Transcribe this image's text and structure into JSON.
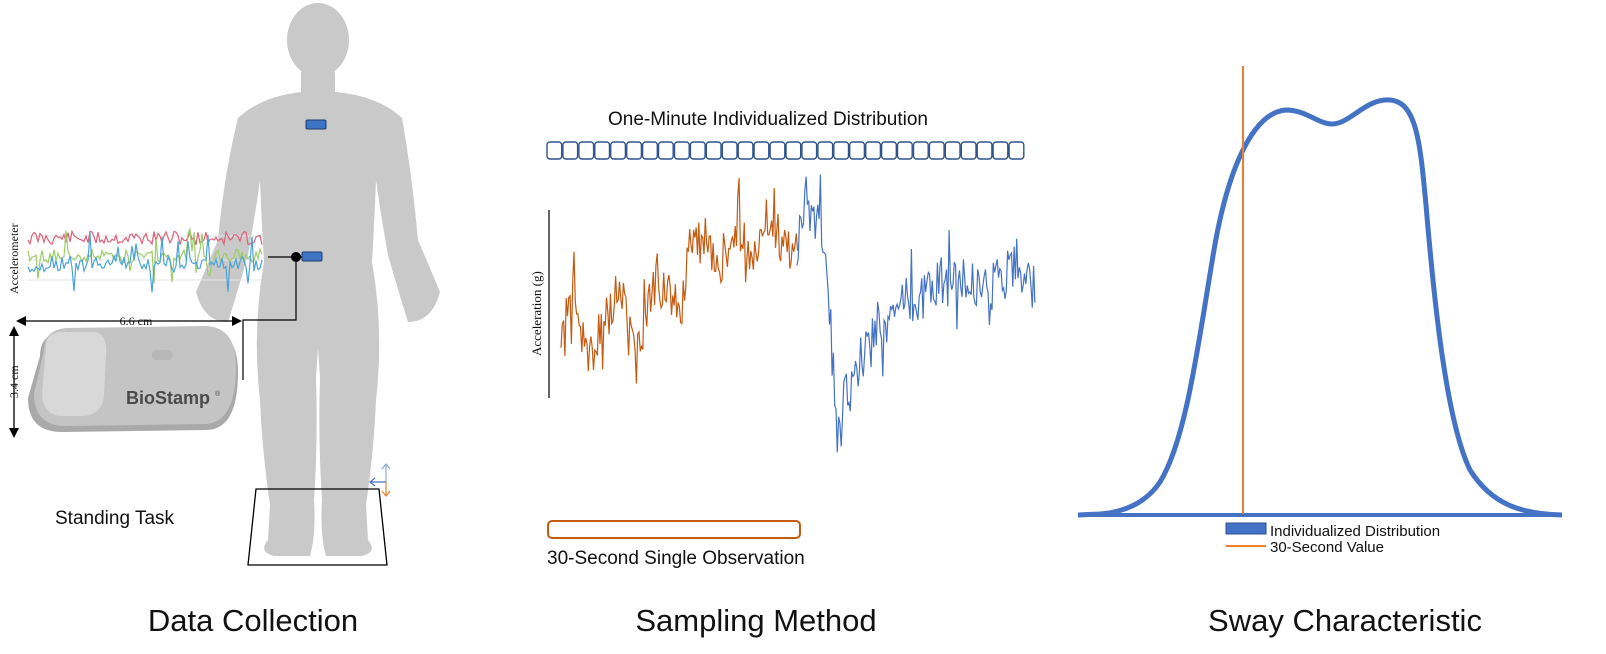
{
  "panels": {
    "data_collection": {
      "title": "Data Collection",
      "standing_task_label": "Standing Task",
      "sensor_brand": "BioStamp",
      "width_label": "6.6 cm",
      "height_label": "3.4 cm",
      "signal_axis_label": "Accelerometer",
      "colors": {
        "figure": "#c9c9c9",
        "sensor": "#3d75c4",
        "red": "#e0607a",
        "green": "#9ccc6a",
        "blue": "#4aa3d8"
      }
    },
    "sampling_method": {
      "title": "Sampling Method",
      "window_label": "One-Minute Individualized Distribution",
      "observation_label": "30-Second Single Observation",
      "y_axis_label": "Acceleration (g)",
      "window_segments": 30,
      "colors": {
        "window": "#2f528f",
        "observation": "#c55a11",
        "signal_blue": "#4472c4",
        "signal_orange": "#c55a11"
      }
    },
    "sway_characteristic": {
      "title": "Sway Characteristic",
      "legend": [
        {
          "label": "Individualized Distribution",
          "color": "#4472c4"
        },
        {
          "label": "30-Second Value",
          "color": "#ed7d31"
        }
      ]
    }
  }
}
